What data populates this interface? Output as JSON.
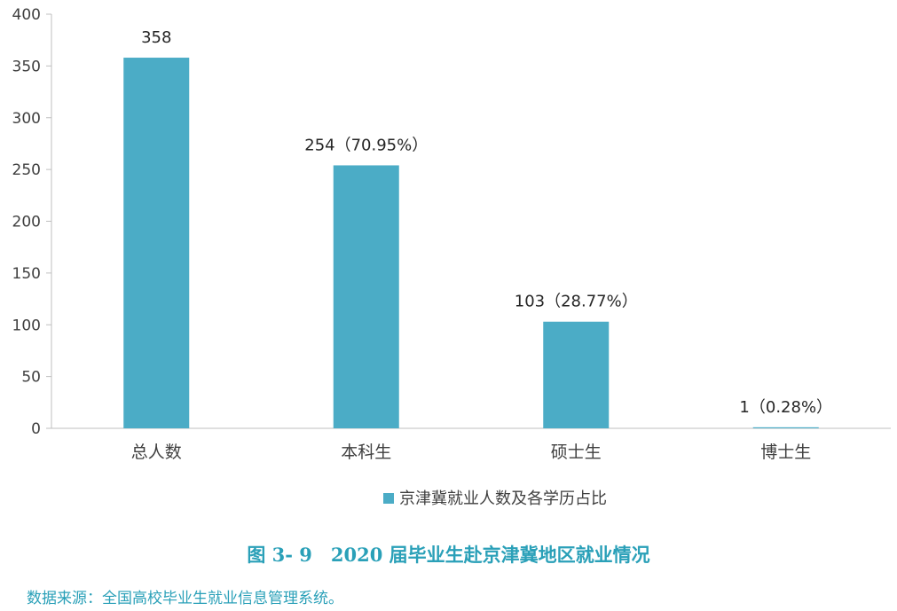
{
  "chart_data": {
    "type": "bar",
    "categories": [
      "总人数",
      "本科生",
      "硕士生",
      "博士生"
    ],
    "values": [
      358,
      254,
      103,
      1
    ],
    "data_labels": [
      "358",
      "254（70.95%）",
      "103（28.77%）",
      "1（0.28%）"
    ],
    "series": [
      {
        "name": "京津冀就业人数及各学历占比",
        "values": [
          358,
          254,
          103,
          1
        ],
        "color": "#4bacc6"
      }
    ],
    "ylim": [
      0,
      400
    ],
    "yticks": [
      0,
      50,
      100,
      150,
      200,
      250,
      300,
      350,
      400
    ],
    "legend_position": "bottom-center",
    "grid": false
  },
  "figure": {
    "caption": "图 3- 9　2020 届毕业生赴京津冀地区就业情况",
    "source": "数据来源：全国高校毕业生就业信息管理系统。"
  },
  "colors": {
    "bar": "#4bacc6",
    "caption": "#2aa0b8",
    "axis": "#bfbfbf"
  }
}
